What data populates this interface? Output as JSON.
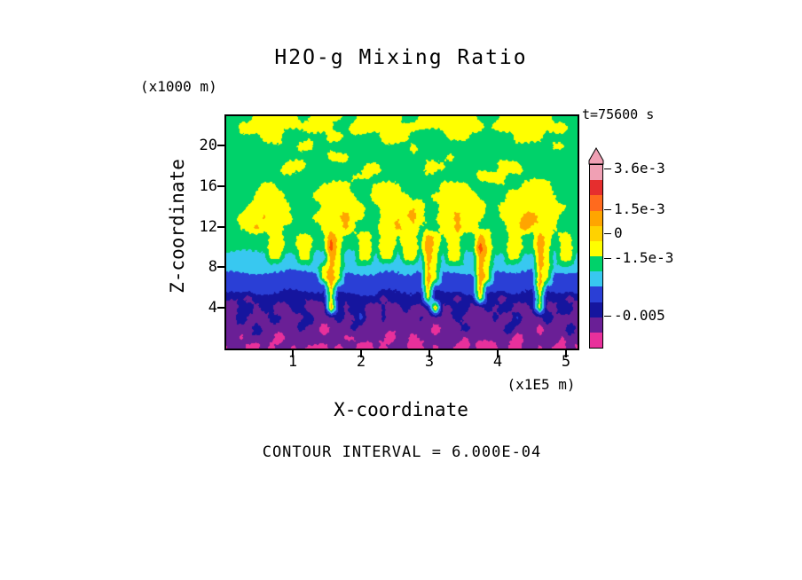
{
  "title": "H2O-g Mixing Ratio",
  "time_label": "t=75600 s",
  "caption": "CONTOUR INTERVAL = 6.000E-04",
  "axes": {
    "y_unit": "(x1000 m)",
    "y_label": "Z-coordinate",
    "y_ticks": [
      "20",
      "16",
      "12",
      "8",
      "4"
    ],
    "x_label": "X-coordinate",
    "x_unit": "(x1E5 m)",
    "x_ticks": [
      "1",
      "2",
      "3",
      "4",
      "5"
    ]
  },
  "colorbar": {
    "labels": [
      "3.6e-3",
      "1.5e-3",
      "0",
      "-1.5e-3",
      "-0.005"
    ],
    "segment_colors": [
      "#f0a0b4",
      "#e62e2e",
      "#ff6a1e",
      "#ffa500",
      "#ffd200",
      "#ffff00",
      "#00d26a",
      "#38c8f0",
      "#2a3fd6",
      "#15159e",
      "#6a1f96",
      "#e8309b"
    ]
  },
  "chart_data": {
    "type": "heatmap",
    "title": "H2O-g Mixing Ratio",
    "xlabel": "X-coordinate (x1E5 m)",
    "ylabel": "Z-coordinate (x1000 m)",
    "x_range": [
      0,
      5.2
    ],
    "z_range": [
      0,
      22.9
    ],
    "time": "t=75600 s",
    "contour_interval": 0.0006,
    "legend_values": [
      "3.6e-3",
      "1.5e-3",
      "0",
      "-1.5e-3",
      "-0.005"
    ],
    "palette_colors": [
      "#e8309b",
      "#6a1f96",
      "#15159e",
      "#2a3fd6",
      "#38c8f0",
      "#00d26a",
      "#ffff00",
      "#ffa500",
      "#ff5000",
      "#ff9e9e"
    ],
    "palette_value_ranges": [
      "v < -4.8e-3",
      "-4.8e-3 to -3.0e-3",
      "-3.0e-3 to -1.8e-3",
      "-1.8e-3 to -1.2e-3",
      "-1.2e-3 to -6e-4",
      "-6e-4 to 6e-4",
      "6e-4 to 1.8e-3",
      "1.8e-3 to 2.7e-3",
      "2.7e-3 to 3.6e-3",
      "v > 3.6e-3"
    ],
    "grid_note": "Estimated field digitized from figure; rows top (z=22.9) to bottom (z=0), 48 columns x=0..5.2; each char is a palette index.",
    "grid_rows_top_to_bottom": [
      "555566666655666655666666556666666655566666665555",
      "556666666666666556666666666666666665666666666655",
      "555556665555556655555666655555666555555666655555",
      "555555555566555555555555565555555555555555556655",
      "555555555555556665555555555555655555555555555555",
      "555555556665555555566555555666555555566655555555",
      "555555555555555556665555555555555566665555555555",
      "555556655555566665556666555556666555555566665555",
      "555566665555666666556666655566666655556666666555",
      "555666666555566666655666666556666665566666666655",
      "556667666555666676655666676556676665566677666555",
      "556676665555566676555667665556676655556676666555",
      "555555665566557655665665665765665576556655765665",
      "555555665566558655665665665765665586556655765665",
      "444444664466447644664664664764664476446644764664",
      "444444444444467644444444444764444476444444764444",
      "333333333333367633333333333763333376333333763333",
      "333333333333337333333333333733333373333333733333",
      "222122222222226222222122222622212262212222622212",
      "112212211221117212211211211271122112122112611221",
      "112111221112111211311211112111121111211311121111",
      "111121111121101112111111111101112111112111011121",
      "110111101111111100111101101111110111111011111011",
      "011001011010001011001011100101100100010011010010"
    ]
  }
}
